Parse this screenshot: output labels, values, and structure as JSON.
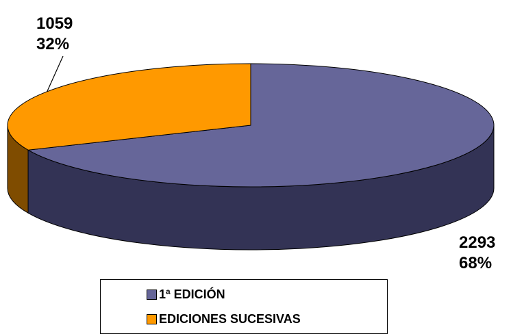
{
  "chart_data": {
    "type": "pie",
    "categories": [
      "1ª EDICIÓN",
      "EDICIONES SUCESIVAS"
    ],
    "values": [
      2293,
      1059
    ],
    "percent_labels": [
      "68%",
      "32%"
    ],
    "colors": [
      "#666699",
      "#FF9900"
    ],
    "side_colors": [
      "#333355",
      "#7F4C00"
    ],
    "legend_position": "bottom",
    "style": "3d"
  },
  "labels": {
    "slice_1": {
      "value": "2293",
      "percent": "68%"
    },
    "slice_2": {
      "value": "1059",
      "percent": "32%"
    }
  },
  "legend": [
    {
      "label": "1ª EDICIÓN",
      "color": "#666699"
    },
    {
      "label": "EDICIONES SUCESIVAS",
      "color": "#FF9900"
    }
  ]
}
